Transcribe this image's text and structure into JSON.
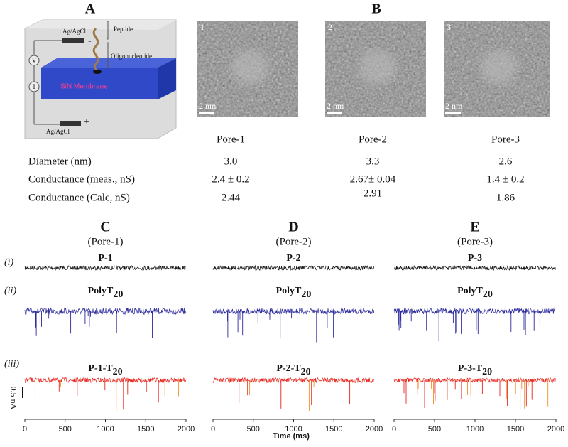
{
  "panels": {
    "A": "A",
    "B": "B"
  },
  "schematic": {
    "electrode_top": "Ag/AgCl",
    "electrode_bottom": "Ag/AgCl",
    "peptide": "Peptide",
    "oligo": "Oligonucleotide",
    "membrane": "SiN Membrane",
    "voltmeter": "V",
    "ammeter": "I",
    "minus": "-",
    "plus": "+"
  },
  "tem_images": [
    {
      "index": "1",
      "scale": "2 nm"
    },
    {
      "index": "2",
      "scale": "2 nm"
    },
    {
      "index": "3",
      "scale": "2 nm"
    }
  ],
  "table": {
    "columns": [
      "Pore-1",
      "Pore-2",
      "Pore-3"
    ],
    "rows": [
      {
        "label": "Diameter (nm)",
        "values": [
          "3.0",
          "3.3",
          "2.6"
        ]
      },
      {
        "label": "Conductance (meas., nS)",
        "values": [
          "2.4 ± 0.2",
          "2.67± 0.04",
          "1.4 ± 0.2"
        ]
      },
      {
        "label": "Conductance (Calc, nS)",
        "values": [
          "2.44",
          "2.91",
          "1.86"
        ]
      }
    ]
  },
  "traces": {
    "row_labels": [
      "(i)",
      "(ii)",
      "(iii)"
    ],
    "columns": [
      {
        "panel": "C",
        "pore": "(Pore-1)",
        "labels": [
          {
            "main": "P-1",
            "sub": ""
          },
          {
            "main": "PolyT",
            "sub": "20"
          },
          {
            "main": "P-1-T",
            "sub": "20"
          }
        ]
      },
      {
        "panel": "D",
        "pore": "(Pore-2)",
        "labels": [
          {
            "main": "P-2",
            "sub": ""
          },
          {
            "main": "PolyT",
            "sub": "20"
          },
          {
            "main": "P-2-T",
            "sub": "20"
          }
        ]
      },
      {
        "panel": "E",
        "pore": "(Pore-3)",
        "labels": [
          {
            "main": "P-3",
            "sub": ""
          },
          {
            "main": "PolyT",
            "sub": "20"
          },
          {
            "main": "P-3-T",
            "sub": "20"
          }
        ]
      }
    ],
    "scale_bar": "0.5 nA",
    "x_ticks": [
      "0",
      "500",
      "1000",
      "1500",
      "2000"
    ],
    "x_label": "Time (ms)"
  }
}
